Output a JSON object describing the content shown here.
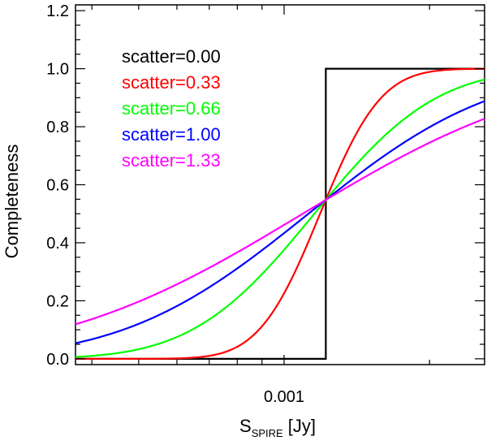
{
  "chart_data": {
    "type": "line",
    "xscale": "log",
    "xlim": [
      0.00037,
      0.0026
    ],
    "ylim": [
      -0.02,
      1.22
    ],
    "xlabel_main": "S",
    "xlabel_sub": "SPIRE",
    "xlabel_unit": "[Jy]",
    "ylabel": "Completeness",
    "x_ticks": [
      {
        "value": 0.001,
        "label": "0.001"
      }
    ],
    "y_ticks": [
      {
        "value": 0.0,
        "label": "0.0"
      },
      {
        "value": 0.2,
        "label": "0.2"
      },
      {
        "value": 0.4,
        "label": "0.4"
      },
      {
        "value": 0.6,
        "label": "0.6"
      },
      {
        "value": 0.8,
        "label": "0.8"
      },
      {
        "value": 1.0,
        "label": "1.0"
      },
      {
        "value": 1.2,
        "label": "1.2"
      }
    ],
    "threshold": 0.00122,
    "series": [
      {
        "name": "scatter=0.00",
        "scatter": 0.0,
        "color": "#000000"
      },
      {
        "name": "scatter=0.33",
        "scatter": 0.33,
        "color": "#ff0000"
      },
      {
        "name": "scatter=0.66",
        "scatter": 0.66,
        "color": "#00ff00"
      },
      {
        "name": "scatter=1.00",
        "scatter": 1.0,
        "color": "#0000ff"
      },
      {
        "name": "scatter=1.33",
        "scatter": 1.33,
        "color": "#ff00ff"
      }
    ]
  }
}
